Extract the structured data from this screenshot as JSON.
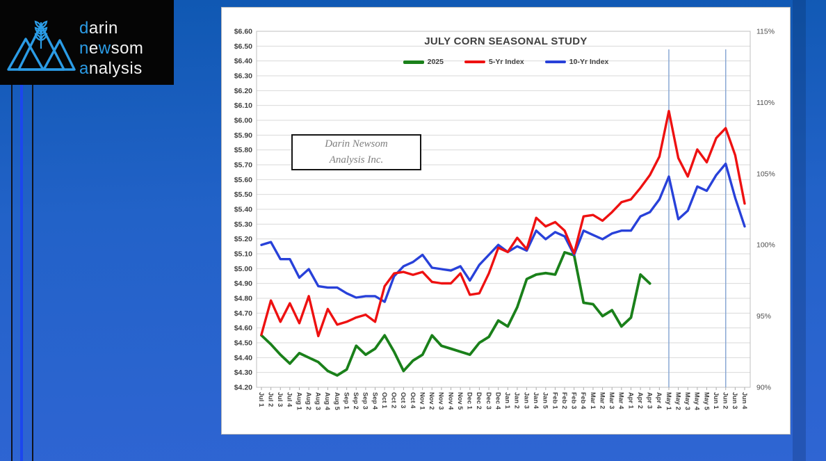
{
  "logo": {
    "lines": [
      [
        {
          "t": "d",
          "c": "b"
        },
        {
          "t": "arin",
          "c": "w"
        }
      ],
      [
        {
          "t": "n",
          "c": "b"
        },
        {
          "t": "e",
          "c": "w"
        },
        {
          "t": "w",
          "c": "b"
        },
        {
          "t": "som",
          "c": "w"
        }
      ],
      [
        {
          "t": "a",
          "c": "b"
        },
        {
          "t": "nalysis",
          "c": "w"
        }
      ]
    ],
    "icon": "mountain-wheat-logo",
    "accent_color": "#2b9ce6"
  },
  "watermark": {
    "line1": "Darin Newsom",
    "line2": "Analysis Inc."
  },
  "chart_data": {
    "type": "line",
    "title": "JULY CORN SEASONAL STUDY",
    "legend_position": "top",
    "grid": true,
    "categories": [
      "Jul 1",
      "Jul 2",
      "Jul 3",
      "Jul 4",
      "Aug 1",
      "Aug 2",
      "Aug 3",
      "Aug 4",
      "Aug 5",
      "Sep 1",
      "Sep 2",
      "Sep 3",
      "Sep 4",
      "Oct 1",
      "Oct 2",
      "Oct 3",
      "Oct 4",
      "Nov 1",
      "Nov 2",
      "Nov 3",
      "Nov 4",
      "Nov 5",
      "Dec 1",
      "Dec 2",
      "Dec 3",
      "Dec 4",
      "Jan 1",
      "Jan 2",
      "Jan 3",
      "Jan 4",
      "Jan 5",
      "Feb 1",
      "Feb 2",
      "Feb 3",
      "Feb 4",
      "Mar 1",
      "Mar 2",
      "Mar 3",
      "Mar 4",
      "Apr 1",
      "Apr 2",
      "Apr 3",
      "Apr 4",
      "May 1",
      "May 2",
      "May 3",
      "May 4",
      "May 5",
      "Jun 1",
      "Jun 2",
      "Jun 3",
      "Jun 4"
    ],
    "series": [
      {
        "name": "2025",
        "axis": "left",
        "color": "#1a801a",
        "width": 3.8,
        "values": [
          4.55,
          4.49,
          4.42,
          4.36,
          4.43,
          4.4,
          4.37,
          4.31,
          4.28,
          4.32,
          4.48,
          4.42,
          4.46,
          4.55,
          4.44,
          4.31,
          4.38,
          4.42,
          4.55,
          4.48,
          4.46,
          4.44,
          4.42,
          4.5,
          4.54,
          4.65,
          4.61,
          4.74,
          4.93,
          4.96,
          4.97,
          4.96,
          5.11,
          5.09,
          4.77,
          4.76,
          4.68,
          4.72,
          4.61,
          4.67,
          4.96,
          4.9,
          null,
          null,
          null,
          null,
          null,
          null,
          null,
          null,
          null,
          null
        ]
      },
      {
        "name": "5-Yr Index",
        "axis": "right",
        "color": "#ee1111",
        "width": 3.4,
        "values": [
          93.7,
          96.1,
          94.6,
          95.9,
          94.5,
          96.4,
          93.6,
          95.5,
          94.4,
          94.6,
          94.9,
          95.1,
          94.6,
          97.1,
          98.0,
          98.1,
          97.9,
          98.1,
          97.4,
          97.3,
          97.3,
          98.0,
          96.5,
          96.6,
          98.0,
          99.8,
          99.5,
          100.5,
          99.7,
          101.9,
          101.3,
          101.6,
          101.0,
          99.4,
          102.0,
          102.1,
          101.7,
          102.3,
          103.0,
          103.2,
          104.0,
          104.9,
          106.2,
          109.4,
          106.1,
          104.8,
          106.7,
          105.8,
          107.5,
          108.2,
          106.3,
          102.9
        ]
      },
      {
        "name": "10-Yr Index",
        "axis": "right",
        "color": "#2841d9",
        "width": 3.4,
        "values": [
          100.0,
          100.2,
          99.0,
          99.0,
          97.7,
          98.3,
          97.1,
          97.0,
          97.0,
          96.6,
          96.3,
          96.4,
          96.4,
          96.0,
          97.8,
          98.5,
          98.8,
          99.3,
          98.4,
          98.3,
          98.2,
          98.5,
          97.5,
          98.6,
          99.3,
          100.0,
          99.5,
          99.9,
          99.6,
          101.0,
          100.4,
          100.9,
          100.6,
          99.3,
          101.0,
          100.7,
          100.4,
          100.8,
          101.0,
          101.0,
          102.0,
          102.3,
          103.2,
          104.8,
          101.8,
          102.4,
          104.1,
          103.8,
          104.9,
          105.7,
          103.3,
          101.3
        ]
      }
    ],
    "left_axis": {
      "min": 4.2,
      "max": 6.6,
      "ticks": [
        "$6.60",
        "$6.50",
        "$6.40",
        "$6.30",
        "$6.20",
        "$6.10",
        "$6.00",
        "$5.90",
        "$5.80",
        "$5.70",
        "$5.60",
        "$5.50",
        "$5.40",
        "$5.30",
        "$5.20",
        "$5.10",
        "$5.00",
        "$4.90",
        "$4.80",
        "$4.70",
        "$4.60",
        "$4.50",
        "$4.40",
        "$4.30",
        "$4.20"
      ]
    },
    "right_axis": {
      "min": 90,
      "max": 115,
      "ticks": [
        {
          "label": "115%",
          "value": 115
        },
        {
          "label": "110%",
          "value": 110
        },
        {
          "label": "105%",
          "value": 105
        },
        {
          "label": "100%",
          "value": 100
        },
        {
          "label": "95%",
          "value": 95
        },
        {
          "label": "90%",
          "value": 90
        }
      ]
    },
    "annotations": {
      "vlines": [
        "May 1",
        "Jun 2"
      ],
      "color": "#8aa8d4"
    }
  }
}
